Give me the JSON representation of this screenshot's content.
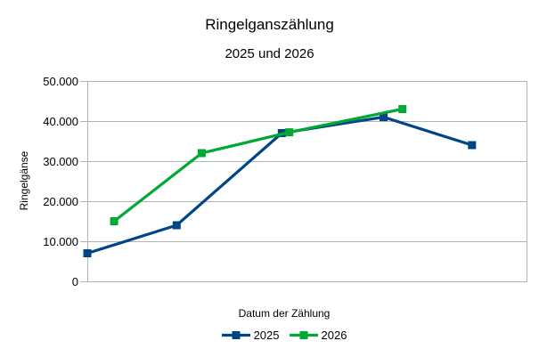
{
  "chart_data": {
    "type": "line",
    "title": "Ringelganszählung",
    "subtitle": "2025 und 2026",
    "xlabel": "Datum der Zählung",
    "ylabel": "Ringelgänse",
    "ylim": [
      0,
      50000
    ],
    "y_ticks": [
      {
        "value": 50000,
        "label": "50.000"
      },
      {
        "value": 40000,
        "label": "40.000"
      },
      {
        "value": 30000,
        "label": "30.000"
      },
      {
        "value": 20000,
        "label": "20.000"
      },
      {
        "value": 10000,
        "label": "10.000"
      },
      {
        "value": 0,
        "label": "0"
      }
    ],
    "x_axis": {
      "tick_labels_visible": false,
      "scale": "relative position 0-1, date values not labeled in image"
    },
    "grid": true,
    "legend_position": "bottom",
    "colors": {
      "grid_and_axes": "#b3b3b3",
      "text": "#000000",
      "background": "#ffffff",
      "series_2025": "#004586",
      "series_2026": "#00a933"
    },
    "series": [
      {
        "name": "2025",
        "color": "#004586",
        "marker": "square",
        "points": [
          [
            0.0,
            7000
          ],
          [
            0.203,
            14000
          ],
          [
            0.442,
            37000
          ],
          [
            0.673,
            41000
          ],
          [
            0.874,
            34000
          ]
        ]
      },
      {
        "name": "2026",
        "color": "#00a933",
        "marker": "square",
        "points": [
          [
            0.061,
            15000
          ],
          [
            0.26,
            32000
          ],
          [
            0.459,
            37200
          ],
          [
            0.716,
            43000
          ]
        ]
      }
    ]
  }
}
